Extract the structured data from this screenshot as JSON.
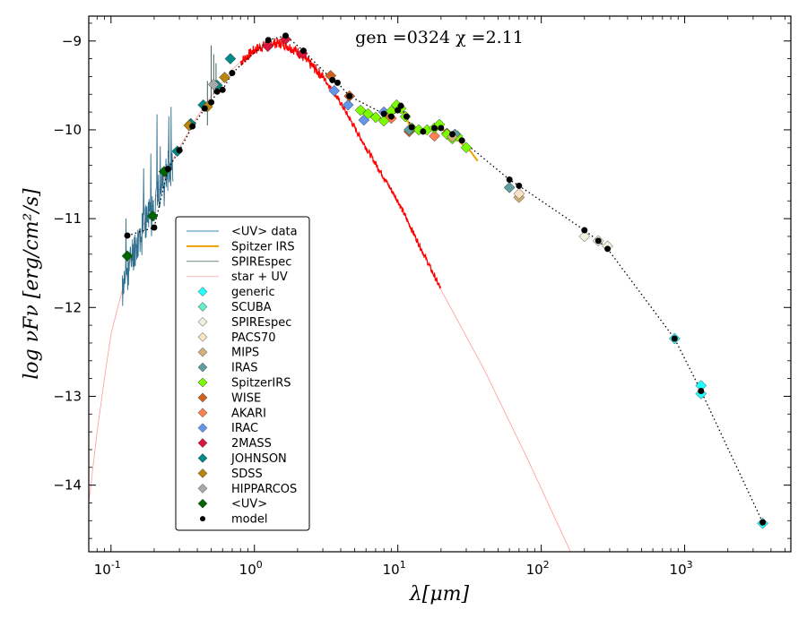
{
  "chart_data": {
    "type": "scatter",
    "annotation": "gen =0324  χ =2.11",
    "xlabel": "λ[μm]",
    "ylabel": "log νFν [erg/cm²/s]",
    "xscale": "log",
    "xlim": [
      0.07,
      5500
    ],
    "ylim": [
      -14.75,
      -8.72
    ],
    "x_ticks": [
      {
        "value": 0.1,
        "label": "10",
        "exp": "-1"
      },
      {
        "value": 1,
        "label": "10",
        "exp": "0"
      },
      {
        "value": 10,
        "label": "10",
        "exp": "1"
      },
      {
        "value": 100,
        "label": "10",
        "exp": "2"
      },
      {
        "value": 1000,
        "label": "10",
        "exp": "3"
      }
    ],
    "y_ticks": [
      -9,
      -10,
      -11,
      -12,
      -13,
      -14
    ],
    "y_tick_labels": [
      "−9",
      "−10",
      "−11",
      "−12",
      "−13",
      "−14"
    ],
    "legend_position": "lower-left",
    "legend": [
      {
        "label": "<UV> data",
        "kind": "line",
        "color": "#3b8bb5",
        "width": 1
      },
      {
        "label": "Spitzer IRS",
        "kind": "line",
        "color": "#f0a000",
        "width": 2
      },
      {
        "label": "SPIREspec",
        "kind": "line",
        "color": "#7a8a7a",
        "width": 1
      },
      {
        "label": "star + UV",
        "kind": "line",
        "color": "#ffb0b0",
        "width": 0.8
      },
      {
        "label": "generic",
        "kind": "diamond",
        "color": "#22ffff"
      },
      {
        "label": "SCUBA",
        "kind": "diamond",
        "color": "#66eecc"
      },
      {
        "label": "SPIREspec",
        "kind": "diamond",
        "color": "#f2f2dc"
      },
      {
        "label": "PACS70",
        "kind": "diamond",
        "color": "#fbe2c4"
      },
      {
        "label": "MIPS",
        "kind": "diamond",
        "color": "#d2b07a"
      },
      {
        "label": "IRAS",
        "kind": "diamond",
        "color": "#5f9ea0"
      },
      {
        "label": "SpitzerIRS",
        "kind": "diamond",
        "color": "#7cfc00"
      },
      {
        "label": "WISE",
        "kind": "diamond",
        "color": "#d2601e"
      },
      {
        "label": "AKARI",
        "kind": "diamond",
        "color": "#ff7f50"
      },
      {
        "label": "IRAC",
        "kind": "diamond",
        "color": "#6495ed"
      },
      {
        "label": "2MASS",
        "kind": "diamond",
        "color": "#dc143c"
      },
      {
        "label": "JOHNSON",
        "kind": "diamond",
        "color": "#008b8b"
      },
      {
        "label": "SDSS",
        "kind": "diamond",
        "color": "#b8860b"
      },
      {
        "label": "HIPPARCOS",
        "kind": "diamond",
        "color": "#a9a9a9"
      },
      {
        "label": "<UV>",
        "kind": "diamond",
        "color": "#006400"
      },
      {
        "label": "model",
        "kind": "dot",
        "color": "#000000"
      }
    ],
    "photometry": [
      {
        "series": "<UV>",
        "points": [
          [
            0.13,
            -11.42
          ],
          [
            0.195,
            -10.97
          ],
          [
            0.235,
            -10.47
          ]
        ]
      },
      {
        "series": "JOHNSON",
        "points": [
          [
            0.29,
            -10.24
          ],
          [
            0.36,
            -9.93
          ],
          [
            0.44,
            -9.72
          ],
          [
            0.55,
            -9.5
          ],
          [
            0.68,
            -9.2
          ]
        ]
      },
      {
        "series": "SDSS",
        "points": [
          [
            0.35,
            -9.95
          ],
          [
            0.47,
            -9.74
          ],
          [
            0.62,
            -9.41
          ]
        ]
      },
      {
        "series": "HIPPARCOS",
        "points": [
          [
            0.52,
            -9.49
          ]
        ]
      },
      {
        "series": "2MASS",
        "points": [
          [
            1.24,
            -9.06
          ],
          [
            1.65,
            -8.98
          ],
          [
            2.16,
            -9.14
          ]
        ]
      },
      {
        "series": "IRAC",
        "points": [
          [
            3.6,
            -9.56
          ],
          [
            4.5,
            -9.72
          ],
          [
            5.8,
            -9.89
          ],
          [
            8.0,
            -9.8
          ]
        ]
      },
      {
        "series": "WISE",
        "points": [
          [
            3.4,
            -9.39
          ],
          [
            4.6,
            -9.62
          ],
          [
            12.0,
            -10.02
          ],
          [
            22.0,
            -10.04
          ]
        ]
      },
      {
        "series": "AKARI",
        "points": [
          [
            9.0,
            -9.87
          ],
          [
            18.0,
            -10.07
          ]
        ]
      },
      {
        "series": "SpitzerIRS",
        "points": [
          [
            5.5,
            -9.78
          ],
          [
            6.2,
            -9.82
          ],
          [
            7.0,
            -9.86
          ],
          [
            8.0,
            -9.9
          ],
          [
            9.0,
            -9.79
          ],
          [
            9.8,
            -9.72
          ],
          [
            10.5,
            -9.76
          ],
          [
            11.3,
            -9.85
          ],
          [
            12.5,
            -9.98
          ],
          [
            14.0,
            -10.0
          ],
          [
            16.0,
            -10.0
          ],
          [
            18.0,
            -9.98
          ],
          [
            19.5,
            -9.94
          ],
          [
            22.0,
            -10.05
          ],
          [
            24.0,
            -10.1
          ],
          [
            26.0,
            -10.07
          ],
          [
            30.0,
            -10.2
          ]
        ]
      },
      {
        "series": "IRAS",
        "points": [
          [
            12.0,
            -10.0
          ],
          [
            25.0,
            -10.05
          ],
          [
            60.0,
            -10.65
          ]
        ]
      },
      {
        "series": "MIPS",
        "points": [
          [
            24.0,
            -10.08
          ],
          [
            70.0,
            -10.76
          ]
        ]
      },
      {
        "series": "PACS70",
        "points": [
          [
            70.0,
            -10.72
          ]
        ]
      },
      {
        "series": "SPIREspec",
        "points": [
          [
            200.0,
            -11.2
          ],
          [
            250.0,
            -11.25
          ],
          [
            290.0,
            -11.31
          ]
        ]
      },
      {
        "series": "generic",
        "points": [
          [
            850.0,
            -12.35
          ],
          [
            1300.0,
            -12.88
          ],
          [
            1300.0,
            -12.97
          ],
          [
            3500.0,
            -14.43
          ]
        ]
      }
    ],
    "model": [
      [
        0.13,
        -11.19
      ],
      [
        0.2,
        -11.1
      ],
      [
        0.25,
        -10.44
      ],
      [
        0.3,
        -10.23
      ],
      [
        0.37,
        -9.96
      ],
      [
        0.45,
        -9.76
      ],
      [
        0.5,
        -9.69
      ],
      [
        0.55,
        -9.57
      ],
      [
        0.6,
        -9.55
      ],
      [
        0.7,
        -9.36
      ],
      [
        1.25,
        -8.99
      ],
      [
        1.65,
        -8.94
      ],
      [
        2.2,
        -9.11
      ],
      [
        3.5,
        -9.44
      ],
      [
        3.8,
        -9.47
      ],
      [
        4.6,
        -9.62
      ],
      [
        8.0,
        -9.82
      ],
      [
        9.0,
        -9.85
      ],
      [
        10.0,
        -9.78
      ],
      [
        10.5,
        -9.73
      ],
      [
        11.5,
        -9.85
      ],
      [
        12.5,
        -9.97
      ],
      [
        15.0,
        -10.02
      ],
      [
        18.0,
        -9.98
      ],
      [
        20.0,
        -9.98
      ],
      [
        24.0,
        -10.05
      ],
      [
        28.0,
        -10.12
      ],
      [
        60.0,
        -10.56
      ],
      [
        70.0,
        -10.63
      ],
      [
        200.0,
        -11.13
      ],
      [
        250.0,
        -11.25
      ],
      [
        290.0,
        -11.34
      ],
      [
        850.0,
        -12.35
      ],
      [
        1300.0,
        -12.94
      ],
      [
        3500.0,
        -14.42
      ]
    ],
    "spitzer_irs_line": [
      [
        5.2,
        -9.75
      ],
      [
        6.0,
        -9.8
      ],
      [
        7.0,
        -9.86
      ],
      [
        8.0,
        -9.88
      ],
      [
        9.0,
        -9.8
      ],
      [
        9.7,
        -9.72
      ],
      [
        10.5,
        -9.76
      ],
      [
        11.3,
        -9.86
      ],
      [
        12.5,
        -9.98
      ],
      [
        14.0,
        -10.01
      ],
      [
        16.0,
        -10.01
      ],
      [
        18.0,
        -9.99
      ],
      [
        20.0,
        -9.98
      ],
      [
        22.0,
        -10.03
      ],
      [
        25.0,
        -10.08
      ],
      [
        28.0,
        -10.16
      ],
      [
        32.0,
        -10.24
      ],
      [
        36.0,
        -10.35
      ]
    ],
    "star_plus_uv_line": [
      [
        0.07,
        -14.2
      ],
      [
        0.08,
        -13.4
      ],
      [
        0.09,
        -12.8
      ],
      [
        0.1,
        -12.3
      ],
      [
        0.12,
        -11.8
      ],
      [
        0.14,
        -11.4
      ],
      [
        0.17,
        -11.05
      ],
      [
        0.2,
        -10.8
      ],
      [
        0.25,
        -10.45
      ],
      [
        0.3,
        -10.2
      ],
      [
        0.4,
        -9.85
      ],
      [
        0.5,
        -9.62
      ],
      [
        0.7,
        -9.32
      ],
      [
        1.0,
        -9.1
      ],
      [
        1.3,
        -9.02
      ],
      [
        1.6,
        -9.03
      ],
      [
        2.0,
        -9.12
      ],
      [
        3.0,
        -9.4
      ],
      [
        4.0,
        -9.7
      ],
      [
        6.0,
        -10.2
      ],
      [
        10.0,
        -10.8
      ],
      [
        20.0,
        -11.8
      ],
      [
        40.0,
        -12.7
      ],
      [
        80.0,
        -13.7
      ],
      [
        160.0,
        -14.75
      ]
    ],
    "stellar_spectrum_range": [
      0.8,
      20
    ]
  }
}
